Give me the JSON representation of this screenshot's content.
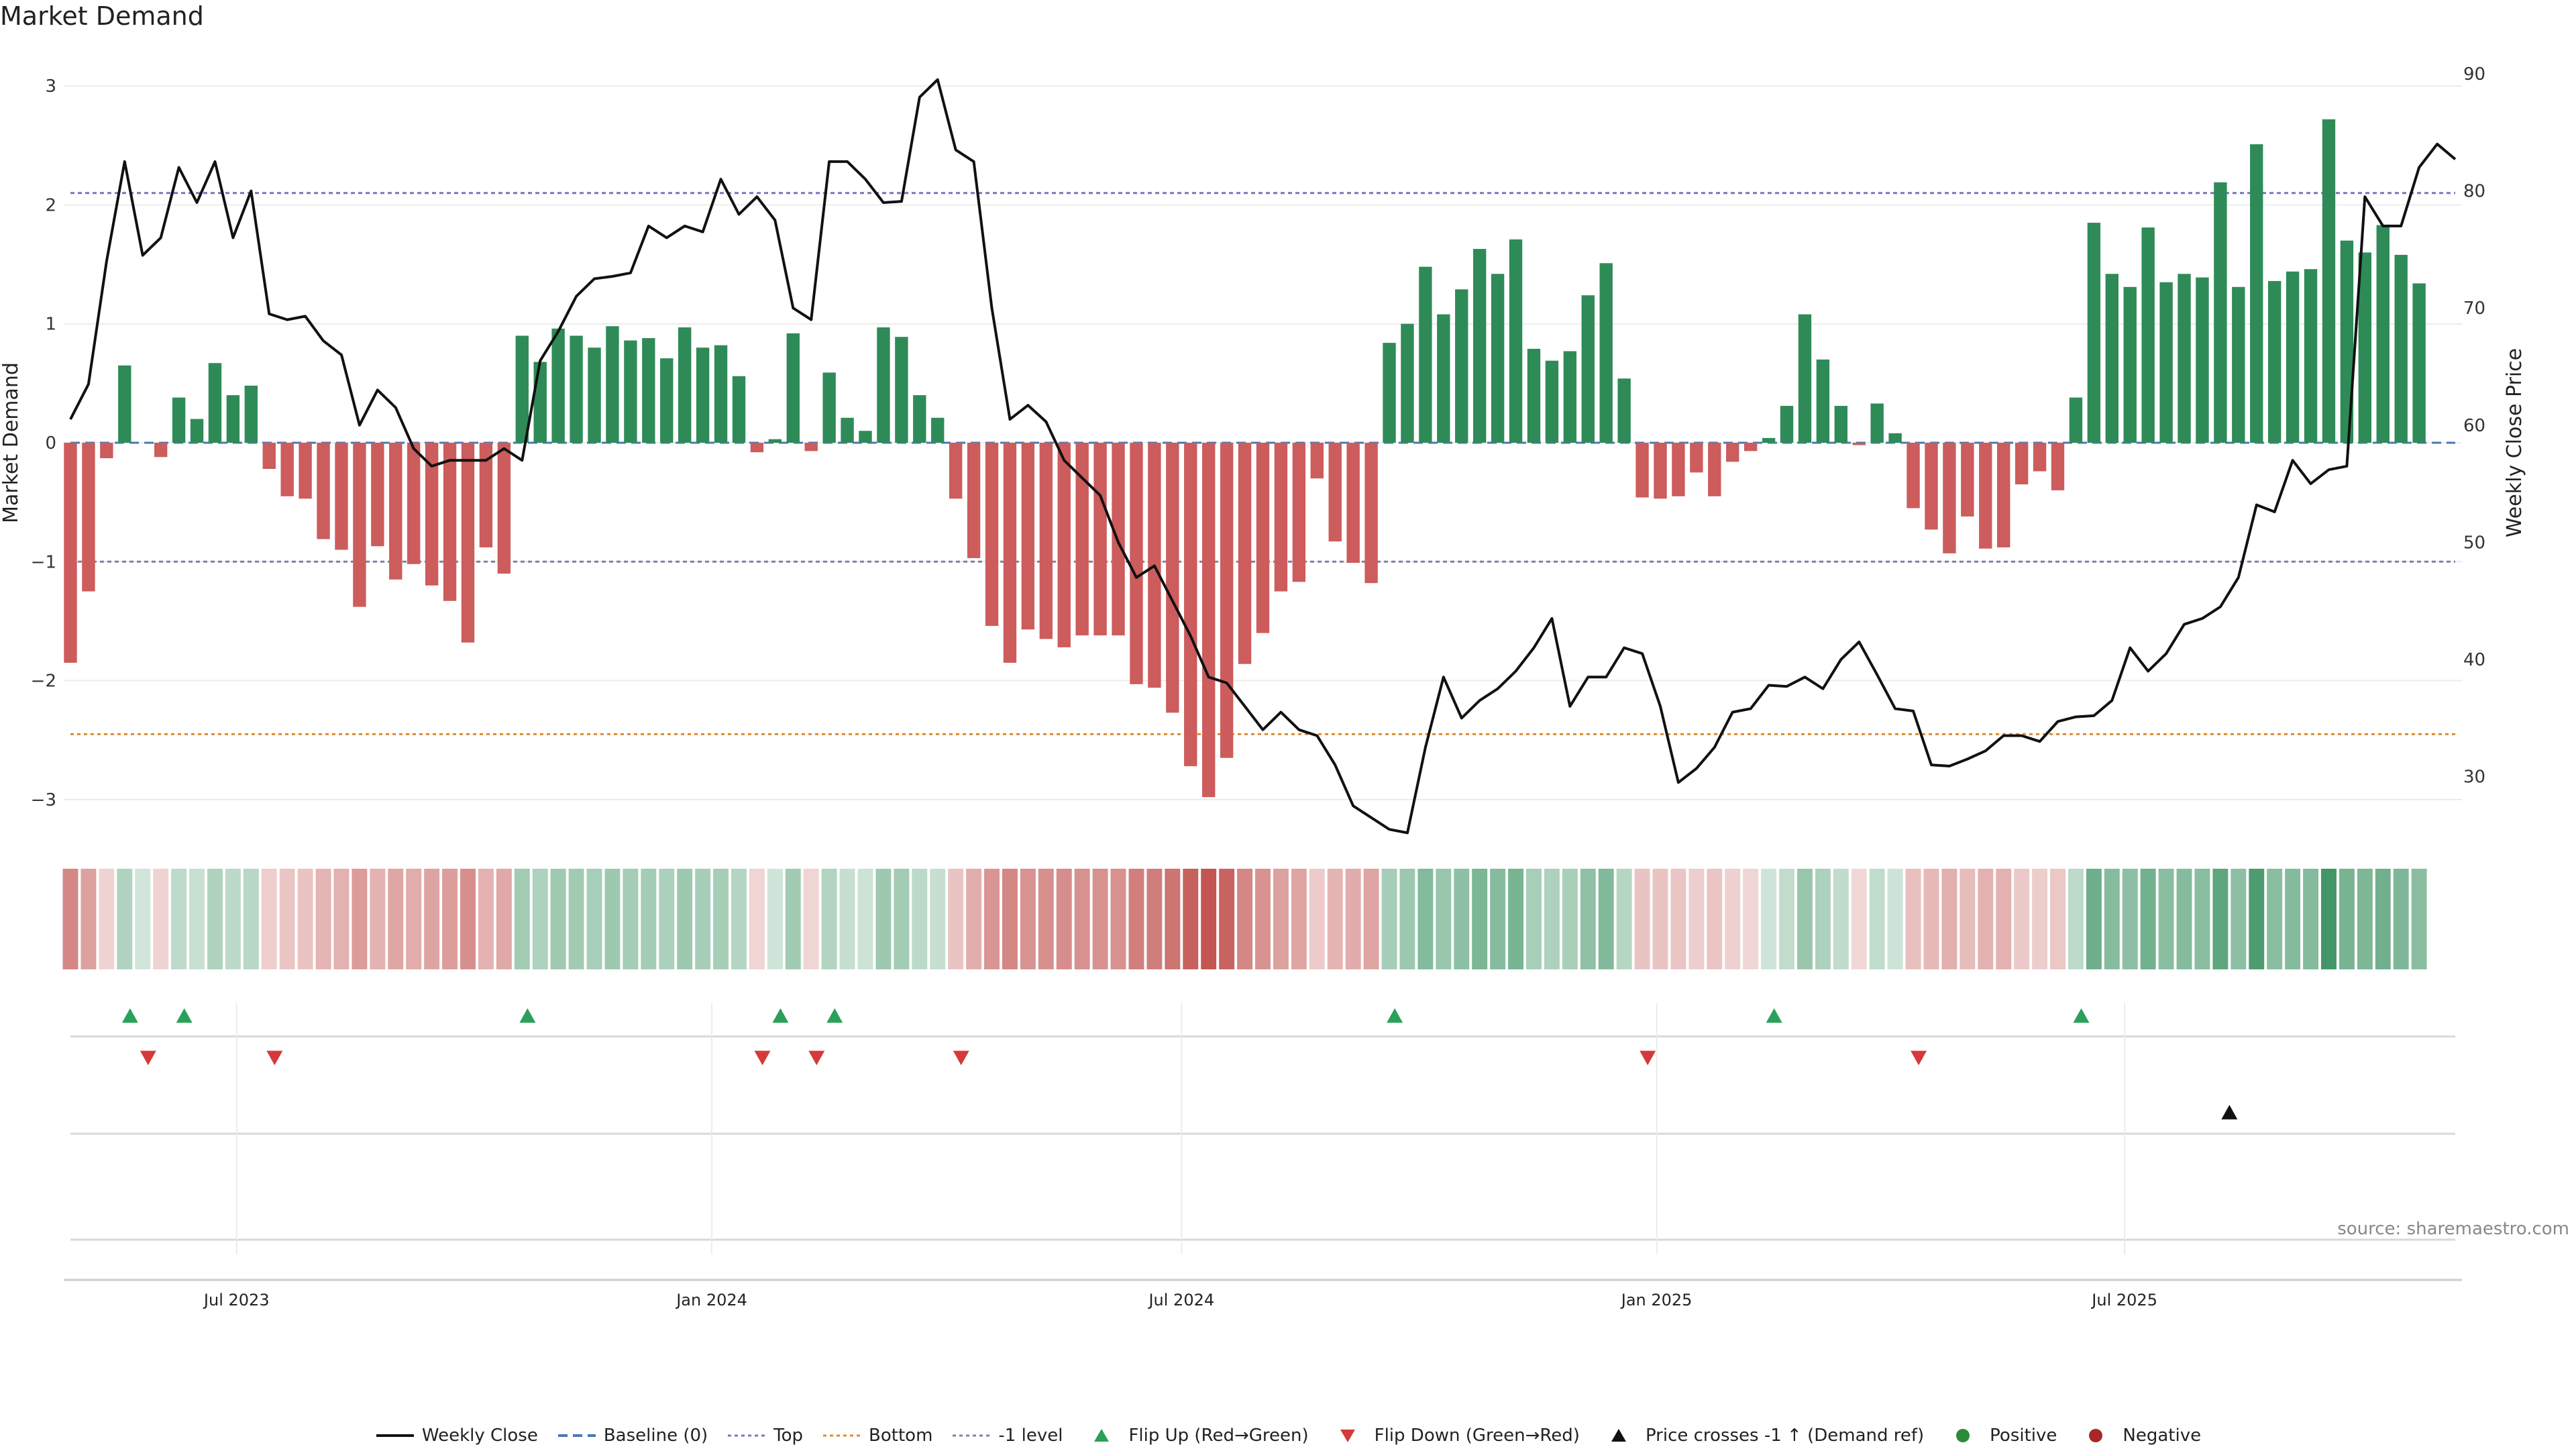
{
  "chart_data": {
    "type": "bar+line",
    "title": "Market Demand",
    "source": "source: sharemaestro.com",
    "ylabel": "Market Demand",
    "y2label": "Weekly Close Price",
    "ylim": [
      -3.3,
      3.3
    ],
    "y2lim": [
      25,
      92
    ],
    "yticks": [
      3,
      2,
      1,
      0,
      -1,
      -2,
      -3
    ],
    "ytick_labels": [
      "3",
      "2",
      "1",
      "0",
      "−1",
      "−2",
      "−3"
    ],
    "y2ticks": [
      90,
      80,
      70,
      60,
      50,
      40,
      30
    ],
    "y2tick_labels": [
      "90",
      "80",
      "70",
      "60",
      "50",
      "40",
      "30"
    ],
    "x_start": "2023-04-23",
    "week_count": 133,
    "xticks": [
      {
        "label": "Jul 2023",
        "week": 9.2
      },
      {
        "label": "Jan 2024",
        "week": 35.5
      },
      {
        "label": "Jul 2024",
        "week": 61.5
      },
      {
        "label": "Jan 2025",
        "week": 87.8
      },
      {
        "label": "Jul 2025",
        "week": 113.7
      }
    ],
    "reference_lines": [
      {
        "name": "Top",
        "value": 2.1,
        "color": "#7777bb",
        "dash": "6,5"
      },
      {
        "name": "Bottom",
        "value": -2.45,
        "color": "#e08a2c",
        "dash": "5,5"
      },
      {
        "name": "-1 level",
        "value": -1.0,
        "color": "#8a7aa5",
        "dash": "6,5"
      }
    ],
    "demand": [
      -1.85,
      -1.25,
      -0.13,
      0.65,
      0,
      -0.12,
      0.38,
      0.2,
      0.67,
      0.4,
      0.48,
      -0.22,
      -0.45,
      -0.47,
      -0.81,
      -0.9,
      -1.38,
      -0.87,
      -1.15,
      -1.02,
      -1.2,
      -1.33,
      -1.68,
      -0.88,
      -1.1,
      0.9,
      0.68,
      0.96,
      0.9,
      0.8,
      0.98,
      0.86,
      0.88,
      0.71,
      0.97,
      0.8,
      0.82,
      0.56,
      -0.08,
      0.03,
      0.92,
      -0.07,
      0.59,
      0.21,
      0.1,
      0.97,
      0.89,
      0.4,
      0.21,
      -0.47,
      -0.97,
      -1.54,
      -1.85,
      -1.57,
      -1.65,
      -1.72,
      -1.62,
      -1.62,
      -1.62,
      -2.03,
      -2.06,
      -2.27,
      -2.72,
      -2.98,
      -2.65,
      -1.86,
      -1.6,
      -1.25,
      -1.17,
      -0.3,
      -0.83,
      -1.01,
      -1.18,
      0.84,
      1.0,
      1.48,
      1.08,
      1.29,
      1.63,
      1.42,
      1.71,
      0.79,
      0.69,
      0.77,
      1.24,
      1.51,
      0.54,
      -0.46,
      -0.47,
      -0.45,
      -0.25,
      -0.45,
      -0.16,
      -0.07,
      0.04,
      0.31,
      1.08,
      0.7,
      0.31,
      -0.02,
      0.33,
      0.08,
      -0.55,
      -0.73,
      -0.93,
      -0.62,
      -0.89,
      -0.88,
      -0.35,
      -0.24,
      -0.4,
      0.38,
      1.85,
      1.42,
      1.31,
      1.81,
      1.35,
      1.42,
      1.39,
      2.19,
      1.31,
      2.51,
      1.36,
      1.44,
      1.46,
      2.72,
      1.7,
      1.6,
      1.83,
      1.58,
      1.34
    ],
    "price": [
      60.5,
      63.5,
      74,
      82.5,
      74.5,
      76,
      82,
      79,
      82.5,
      76,
      80,
      69.5,
      69,
      69.3,
      67.2,
      66,
      60,
      63,
      61.5,
      58,
      56.5,
      57,
      57,
      57,
      58,
      57,
      65.5,
      68,
      71,
      72.5,
      72.7,
      73,
      77,
      76,
      77,
      76.5,
      81,
      78,
      79.5,
      77.5,
      70,
      69,
      82.5,
      82.5,
      81,
      79,
      79.1,
      88,
      89.5,
      83.5,
      82.5,
      70,
      60.5,
      61.7,
      60.3,
      57,
      55.5,
      54,
      50,
      47,
      48,
      45,
      42,
      38.5,
      38,
      36,
      34,
      35.5,
      34,
      33.5,
      31,
      27.5,
      26.5,
      25.5,
      25.2,
      32.5,
      38.5,
      35,
      36.5,
      37.5,
      39,
      41,
      43.5,
      36,
      38.5,
      38.5,
      41,
      40.5,
      36,
      29.5,
      30.7,
      32.5,
      35.5,
      35.8,
      37.8,
      37.7,
      38.5,
      37.5,
      40,
      41.5,
      38.7,
      35.8,
      35.6,
      31,
      30.9,
      31.5,
      32.2,
      33.5,
      33.5,
      33,
      34.7,
      35.1,
      35.2,
      36.5,
      41,
      39,
      40.5,
      43,
      43.5,
      44.5,
      47,
      53.2,
      52.6,
      57,
      55,
      56.2,
      56.5,
      79.5,
      77,
      77,
      82,
      84,
      82.7
    ],
    "heat_strip": {
      "positive_color": "#2e8b57",
      "negative_color": "#c0504d"
    },
    "flip_up_weeks": [
      3.3,
      6.3,
      25.3,
      39.3,
      42.3,
      73.3,
      94.3,
      111.3
    ],
    "flip_down_weeks": [
      4.3,
      11.3,
      38.3,
      41.3,
      49.3,
      87.3,
      102.3
    ],
    "price_cross_weeks": [
      119.5
    ],
    "legend": [
      {
        "label": "Weekly Close",
        "kind": "line",
        "color": "#111111"
      },
      {
        "label": "Baseline (0)",
        "kind": "dash",
        "color": "#4a78b5"
      },
      {
        "label": "Top",
        "kind": "dot",
        "color": "#7777bb"
      },
      {
        "label": "Bottom",
        "kind": "dot",
        "color": "#e08a2c"
      },
      {
        "label": "-1 level",
        "kind": "dot",
        "color": "#8a7aa5"
      },
      {
        "label": "Flip Up (Red→Green)",
        "kind": "tri-up",
        "color": "#2aa05a"
      },
      {
        "label": "Flip Down (Green→Red)",
        "kind": "tri-down",
        "color": "#d43a3a"
      },
      {
        "label": "Price crosses -1 ↑ (Demand ref)",
        "kind": "tri-up",
        "color": "#111111"
      },
      {
        "label": "Positive",
        "kind": "circle",
        "color": "#2a8a3a"
      },
      {
        "label": "Negative",
        "kind": "circle",
        "color": "#a82828"
      }
    ]
  }
}
